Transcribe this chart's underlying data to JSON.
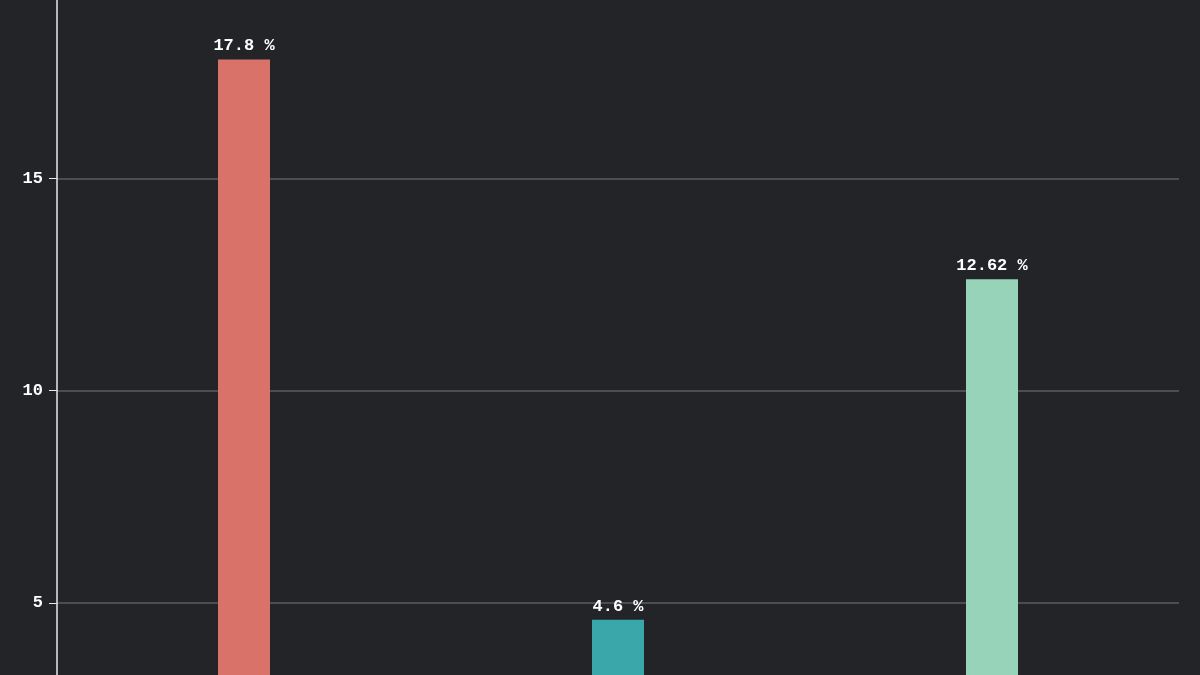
{
  "chart_data": {
    "type": "bar",
    "categories": [
      null,
      null,
      null
    ],
    "values": [
      17.8,
      4.6,
      12.62
    ],
    "colors": [
      "#d9736a",
      "#3aa8aa",
      "#96d3b9"
    ],
    "value_labels": [
      "17.8 %",
      "4.6 %",
      "12.62 %"
    ],
    "ylim": [
      3.3,
      19.2
    ],
    "yticks": [
      5,
      10,
      15
    ],
    "grid": "y",
    "tick_labels": "y"
  }
}
